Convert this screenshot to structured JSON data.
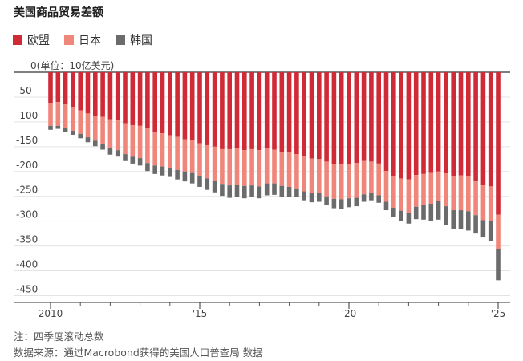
{
  "title": "美国商品贸易差额",
  "legend": [
    {
      "label": "欧盟",
      "color": "#cf2a36"
    },
    {
      "label": "日本",
      "color": "#f0857a"
    },
    {
      "label": "韩国",
      "color": "#6b6b6b"
    }
  ],
  "notes": {
    "line1": "注：四季度滚动总数",
    "line2": "数据来源：通过Macrobond获得的美国人口普查局 数据"
  },
  "chart_data": {
    "type": "bar",
    "stacked": true,
    "y_unit_label": "0(单位：10亿美元)",
    "ylim": [
      -450,
      0
    ],
    "yticks": [
      -50,
      -100,
      -150,
      -200,
      -250,
      -300,
      -350,
      -400,
      -450
    ],
    "xtick_labels": [
      "2010",
      "'15",
      "'20",
      "'25"
    ],
    "xtick_quarters": [
      "2010Q1",
      "2015Q1",
      "2020Q1",
      "2025Q1"
    ],
    "grid": true,
    "legend_position": "top-left",
    "categories": [
      "2010Q1",
      "2010Q2",
      "2010Q3",
      "2010Q4",
      "2011Q1",
      "2011Q2",
      "2011Q3",
      "2011Q4",
      "2012Q1",
      "2012Q2",
      "2012Q3",
      "2012Q4",
      "2013Q1",
      "2013Q2",
      "2013Q3",
      "2013Q4",
      "2014Q1",
      "2014Q2",
      "2014Q3",
      "2014Q4",
      "2015Q1",
      "2015Q2",
      "2015Q3",
      "2015Q4",
      "2016Q1",
      "2016Q2",
      "2016Q3",
      "2016Q4",
      "2017Q1",
      "2017Q2",
      "2017Q3",
      "2017Q4",
      "2018Q1",
      "2018Q2",
      "2018Q3",
      "2018Q4",
      "2019Q1",
      "2019Q2",
      "2019Q3",
      "2019Q4",
      "2020Q1",
      "2020Q2",
      "2020Q3",
      "2020Q4",
      "2021Q1",
      "2021Q2",
      "2021Q3",
      "2021Q4",
      "2022Q1",
      "2022Q2",
      "2022Q3",
      "2022Q4",
      "2023Q1",
      "2023Q2",
      "2023Q3",
      "2023Q4",
      "2024Q1",
      "2024Q2",
      "2024Q3",
      "2024Q4",
      "2025Q1"
    ],
    "series": [
      {
        "name": "欧盟",
        "color": "#cf2a36",
        "values": [
          -63,
          -60,
          -65,
          -70,
          -77,
          -83,
          -88,
          -90,
          -95,
          -97,
          -103,
          -107,
          -108,
          -113,
          -120,
          -123,
          -127,
          -130,
          -135,
          -137,
          -143,
          -147,
          -150,
          -155,
          -155,
          -153,
          -157,
          -155,
          -157,
          -154,
          -156,
          -160,
          -161,
          -165,
          -170,
          -174,
          -175,
          -180,
          -185,
          -186,
          -185,
          -183,
          -179,
          -180,
          -184,
          -199,
          -210,
          -214,
          -216,
          -207,
          -205,
          -203,
          -200,
          -204,
          -210,
          -208,
          -209,
          -220,
          -228,
          -230,
          -287
        ]
      },
      {
        "name": "日本",
        "color": "#f0857a",
        "values": [
          -45,
          -48,
          -47,
          -48,
          -47,
          -48,
          -50,
          -54,
          -58,
          -60,
          -62,
          -63,
          -65,
          -70,
          -68,
          -67,
          -66,
          -67,
          -65,
          -66,
          -66,
          -67,
          -68,
          -70,
          -73,
          -74,
          -72,
          -73,
          -73,
          -70,
          -68,
          -69,
          -70,
          -69,
          -70,
          -70,
          -68,
          -70,
          -70,
          -70,
          -69,
          -70,
          -67,
          -64,
          -64,
          -62,
          -63,
          -65,
          -67,
          -64,
          -62,
          -62,
          -60,
          -66,
          -68,
          -70,
          -71,
          -68,
          -70,
          -70,
          -70
        ]
      },
      {
        "name": "韩国",
        "color": "#6b6b6b",
        "values": [
          -8,
          -6,
          -9,
          -8,
          -9,
          -10,
          -11,
          -12,
          -13,
          -13,
          -14,
          -14,
          -15,
          -16,
          -17,
          -18,
          -18,
          -19,
          -20,
          -21,
          -22,
          -23,
          -24,
          -24,
          -25,
          -25,
          -25,
          -24,
          -24,
          -24,
          -23,
          -22,
          -20,
          -18,
          -18,
          -18,
          -18,
          -18,
          -19,
          -19,
          -18,
          -17,
          -15,
          -14,
          -15,
          -17,
          -19,
          -20,
          -22,
          -25,
          -30,
          -35,
          -37,
          -37,
          -37,
          -38,
          -39,
          -37,
          -35,
          -40,
          -62
        ]
      }
    ]
  }
}
